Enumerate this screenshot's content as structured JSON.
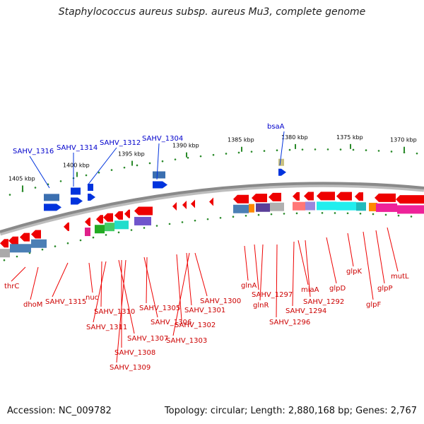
{
  "title": "Staphylococcus aureus subsp. aureus Mu3, complete genome",
  "footer": {
    "accession": "Accession: NC_009782",
    "summary": "Topology: circular; Length: 2,880,168 bp; Genes: 2,767"
  },
  "colors": {
    "backbone": "#8a8a8a",
    "tick_dot": "#2a8a2a",
    "forward_label": "#0000cc",
    "reverse_label": "#cc0000",
    "gene_red": "#ee0000",
    "gene_blue": "#0033dd"
  },
  "scale_labels": [
    "1405 kbp",
    "1400 kbp",
    "1395 kbp",
    "1390 kbp",
    "1385 kbp",
    "1380 kbp",
    "1375 kbp",
    "1370 kbp"
  ],
  "forward_genes": [
    "SAHV_1316",
    "SAHV_1314",
    "SAHV_1312",
    "SAHV_1304",
    "bsaA"
  ],
  "reverse_genes": [
    "thrC",
    "dhoM",
    "SAHV_1315",
    "nuc",
    "SAHV_1310",
    "SAHV_1311",
    "SAHV_1307",
    "SAHV_1308",
    "SAHV_1309",
    "SAHV_1306",
    "SAHV_1305",
    "SAHV_1301",
    "SAHV_1302",
    "SAHV_1303",
    "SAHV_1300",
    "glnA",
    "SAHV_1297",
    "glnR",
    "SAHV_1296",
    "SAHV_1294",
    "miaA",
    "SAHV_1292",
    "glpD",
    "glpK",
    "glpF",
    "glpP",
    "mutL"
  ]
}
